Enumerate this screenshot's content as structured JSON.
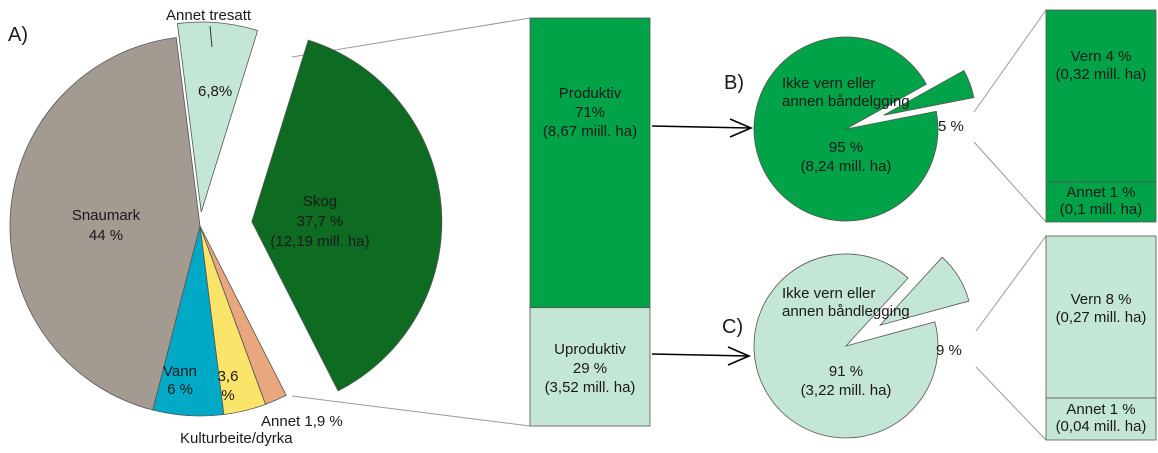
{
  "chart_data": [
    {
      "id": "A",
      "type": "pie",
      "panel_label": "A)",
      "slices": [
        {
          "label": "Annet tresatt",
          "percent": 6.8,
          "value_text": "6,8%",
          "color": "#c4e6d4"
        },
        {
          "label": "Skog",
          "percent": 37.7,
          "value_text": "37,7 %",
          "sub": "(12,19 mill. ha)",
          "color": "#0d6b22"
        },
        {
          "label": "Annet",
          "percent": 1.9,
          "value_text": "Annet 1,9 %",
          "color": "#e8a77c"
        },
        {
          "label": "Kulturbeite/dyrka",
          "percent": 3.6,
          "value_text": "3,6",
          "value_text2": "%",
          "color": "#fbe46a"
        },
        {
          "label": "Vann",
          "percent": 6,
          "value_text": "6 %",
          "color": "#00a9c6"
        },
        {
          "label": "Snaumark",
          "percent": 44,
          "value_text": "44 %",
          "color": "#a39a92"
        }
      ]
    },
    {
      "id": "skog-bar",
      "type": "bar",
      "segments": [
        {
          "label": "Produktiv",
          "percent": 71,
          "value_text": "71%",
          "sub": "(8,67 miill. ha)",
          "color": "#00a347"
        },
        {
          "label": "Uproduktiv",
          "percent": 29,
          "value_text": "29 %",
          "sub": "(3,52 mill. ha)",
          "color": "#c4e6d4"
        }
      ]
    },
    {
      "id": "B",
      "type": "pie",
      "panel_label": "B)",
      "slices": [
        {
          "label_lines": [
            "Ikke vern eller",
            "annen båndelgging"
          ],
          "percent": 95,
          "value_text": "95 %",
          "sub": "(8,24 mill. ha)",
          "color": "#00a347"
        },
        {
          "percent": 5,
          "value_text": "5 %",
          "color": "#00a347"
        }
      ]
    },
    {
      "id": "B-bar",
      "type": "bar",
      "segments": [
        {
          "label": "Vern 4 %",
          "sub": "(0,32 mill. ha)",
          "percent": 4,
          "color": "#00a347"
        },
        {
          "label": "Annet 1 %",
          "sub": "(0,1 mill. ha)",
          "percent": 1,
          "color": "#00a347"
        }
      ]
    },
    {
      "id": "C",
      "type": "pie",
      "panel_label": "C)",
      "slices": [
        {
          "label_lines": [
            "Ikke vern eller",
            "annen båndlegging"
          ],
          "percent": 91,
          "value_text": "91 %",
          "sub": "(3,22 mill. ha)",
          "color": "#c4e6d4"
        },
        {
          "percent": 9,
          "value_text": "9 %",
          "color": "#c4e6d4"
        }
      ]
    },
    {
      "id": "C-bar",
      "type": "bar",
      "segments": [
        {
          "label": "Vern 8 %",
          "sub": "(0,27 mill. ha)",
          "percent": 8,
          "color": "#c4e6d4"
        },
        {
          "label": "Annet 1 %",
          "sub": "(0,04 mill. ha)",
          "percent": 1,
          "color": "#c4e6d4"
        }
      ]
    }
  ],
  "colors": {
    "outline": "#555555",
    "text": "#1a1a1a",
    "arrow": "#000000",
    "connector": "#9a9a9a"
  }
}
